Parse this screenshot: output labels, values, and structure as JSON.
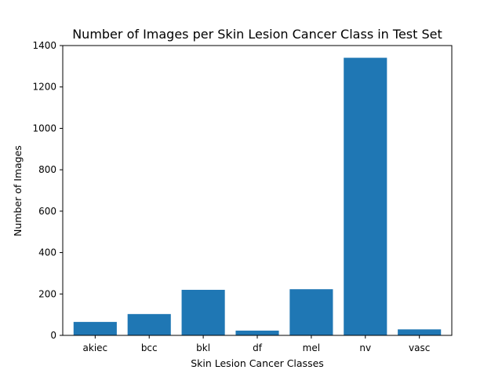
{
  "chart_data": {
    "type": "bar",
    "title": "Number of Images per Skin Lesion Cancer Class in Test Set",
    "xlabel": "Skin Lesion Cancer Classes",
    "ylabel": "Number of Images",
    "categories": [
      "akiec",
      "bcc",
      "bkl",
      "df",
      "mel",
      "nv",
      "vasc"
    ],
    "values": [
      65,
      103,
      220,
      23,
      223,
      1341,
      29
    ],
    "ylim": [
      0,
      1400
    ],
    "yticks": [
      0,
      200,
      400,
      600,
      800,
      1000,
      1200,
      1400
    ],
    "grid": false,
    "legend": "none",
    "bar_color": "#1f77b4"
  }
}
